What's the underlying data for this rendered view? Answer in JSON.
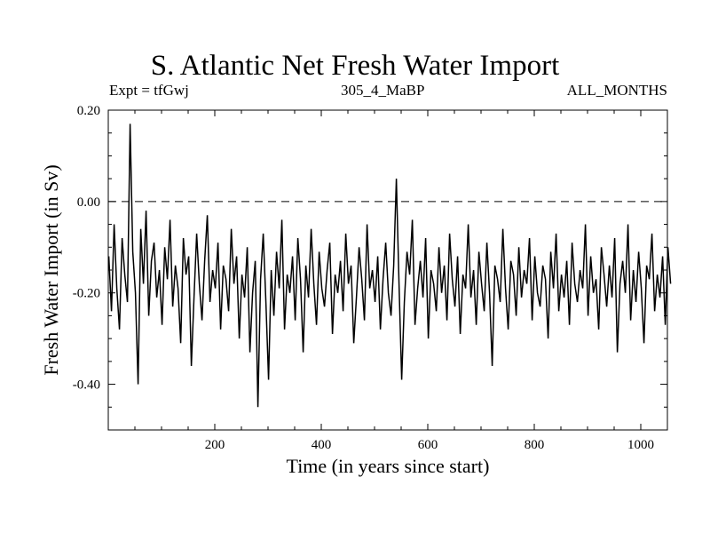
{
  "header": {
    "title": "S. Atlantic Net Fresh Water Import",
    "left_label": "Expt = tfGwj",
    "center_label": "305_4_MaBP",
    "right_label": "ALL_MONTHS"
  },
  "chart_data": {
    "type": "line",
    "title": "S. Atlantic Net Fresh Water Import",
    "xlabel": "Time (in years since start)",
    "ylabel": "Fresh Water Import (in Sv)",
    "xlim": [
      0,
      1050
    ],
    "ylim": [
      -0.5,
      0.2
    ],
    "x_ticks": [
      200,
      400,
      600,
      800,
      1000
    ],
    "x_tick_labels": [
      "200",
      "400",
      "600",
      "800",
      "1000"
    ],
    "y_ticks": [
      -0.4,
      -0.2,
      0.0,
      0.2
    ],
    "y_tick_labels": [
      "-0.40",
      "-0.20",
      "0.00",
      "0.20"
    ],
    "reference_line": {
      "y": 0.0,
      "style": "dashed"
    },
    "grid": false,
    "series": [
      {
        "x_start": 1,
        "x_step": 5,
        "values": [
          -0.12,
          -0.24,
          -0.05,
          -0.19,
          -0.28,
          -0.08,
          -0.16,
          -0.22,
          0.17,
          -0.11,
          -0.2,
          -0.4,
          -0.06,
          -0.18,
          -0.02,
          -0.25,
          -0.13,
          -0.09,
          -0.21,
          -0.15,
          -0.27,
          -0.1,
          -0.17,
          -0.04,
          -0.23,
          -0.14,
          -0.19,
          -0.31,
          -0.08,
          -0.16,
          -0.12,
          -0.36,
          -0.21,
          -0.07,
          -0.18,
          -0.26,
          -0.13,
          -0.03,
          -0.22,
          -0.15,
          -0.19,
          -0.09,
          -0.28,
          -0.14,
          -0.17,
          -0.24,
          -0.06,
          -0.18,
          -0.12,
          -0.3,
          -0.16,
          -0.21,
          -0.1,
          -0.33,
          -0.2,
          -0.13,
          -0.45,
          -0.17,
          -0.07,
          -0.22,
          -0.39,
          -0.15,
          -0.25,
          -0.11,
          -0.19,
          -0.04,
          -0.28,
          -0.16,
          -0.2,
          -0.12,
          -0.26,
          -0.08,
          -0.17,
          -0.33,
          -0.14,
          -0.21,
          -0.06,
          -0.18,
          -0.27,
          -0.11,
          -0.19,
          -0.23,
          -0.15,
          -0.09,
          -0.29,
          -0.16,
          -0.2,
          -0.13,
          -0.24,
          -0.07,
          -0.18,
          -0.14,
          -0.31,
          -0.21,
          -0.1,
          -0.17,
          -0.26,
          -0.05,
          -0.19,
          -0.15,
          -0.22,
          -0.12,
          -0.28,
          -0.17,
          -0.09,
          -0.2,
          -0.25,
          -0.14,
          0.05,
          -0.18,
          -0.39,
          -0.22,
          -0.11,
          -0.16,
          -0.04,
          -0.27,
          -0.19,
          -0.13,
          -0.21,
          -0.08,
          -0.3,
          -0.15,
          -0.18,
          -0.24,
          -0.1,
          -0.2,
          -0.14,
          -0.26,
          -0.07,
          -0.17,
          -0.23,
          -0.12,
          -0.29,
          -0.16,
          -0.19,
          -0.05,
          -0.21,
          -0.15,
          -0.27,
          -0.11,
          -0.18,
          -0.24,
          -0.09,
          -0.2,
          -0.36,
          -0.14,
          -0.17,
          -0.22,
          -0.06,
          -0.19,
          -0.28,
          -0.13,
          -0.16,
          -0.25,
          -0.1,
          -0.21,
          -0.15,
          -0.18,
          -0.08,
          -0.26,
          -0.12,
          -0.2,
          -0.23,
          -0.14,
          -0.17,
          -0.3,
          -0.11,
          -0.19,
          -0.07,
          -0.24,
          -0.16,
          -0.21,
          -0.13,
          -0.27,
          -0.09,
          -0.18,
          -0.22,
          -0.15,
          -0.19,
          -0.05,
          -0.25,
          -0.12,
          -0.2,
          -0.17,
          -0.28,
          -0.1,
          -0.16,
          -0.23,
          -0.14,
          -0.21,
          -0.08,
          -0.33,
          -0.18,
          -0.13,
          -0.2,
          -0.05,
          -0.26,
          -0.15,
          -0.22,
          -0.11,
          -0.19,
          -0.31,
          -0.14,
          -0.17,
          -0.07,
          -0.24,
          -0.16,
          -0.21,
          -0.12,
          -0.27,
          -0.1,
          -0.18
        ]
      }
    ]
  }
}
